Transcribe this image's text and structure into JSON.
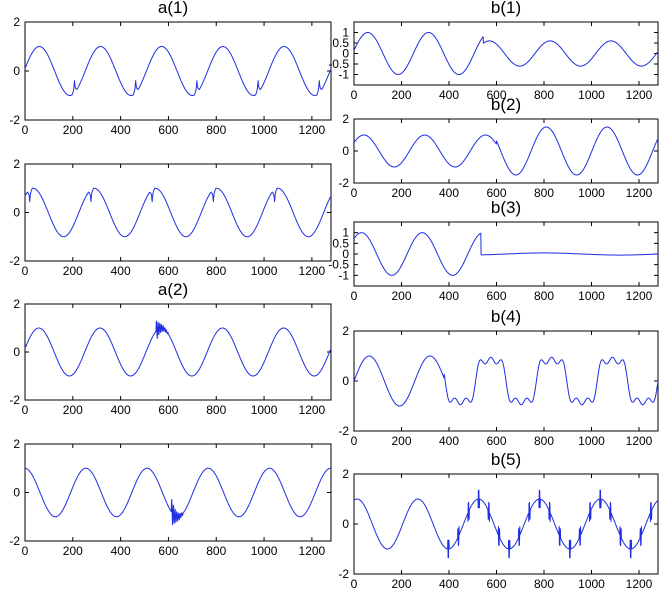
{
  "figure": {
    "colors": {
      "line": "#1f2ee0",
      "axes": "#000000",
      "background": "#ffffff"
    }
  },
  "chart_data": [
    {
      "id": "a1-top",
      "title": "a(1)",
      "type": "line",
      "xlim": [
        0,
        1280
      ],
      "ylim": [
        -2,
        2
      ],
      "xticks": [
        "0",
        "200",
        "400",
        "600",
        "800",
        "1000",
        "1200"
      ],
      "yticks": [
        "2",
        "0",
        "-2"
      ],
      "series": [
        {
          "kind": "sine",
          "amplitude": 1,
          "period": 256,
          "phase": 0.1,
          "disturbance": "spikes",
          "spike_sign": 1,
          "spike_height": 0.5,
          "spike_x": [
            207,
            463,
            719,
            975,
            1231
          ]
        }
      ]
    },
    {
      "id": "a1-bottom",
      "title": "",
      "type": "line",
      "xlim": [
        0,
        1280
      ],
      "ylim": [
        -2,
        2
      ],
      "xticks": [
        "0",
        "200",
        "400",
        "600",
        "800",
        "1000",
        "1200"
      ],
      "yticks": [
        "2",
        "0",
        "-2"
      ],
      "series": [
        {
          "kind": "sine",
          "amplitude": 1,
          "period": 256,
          "phase": 0.75,
          "disturbance": "spikes",
          "spike_sign": -1,
          "spike_height": 0.5,
          "spike_x": [
            20,
            276,
            532,
            788,
            1044
          ]
        }
      ]
    },
    {
      "id": "a2-top",
      "title": "a(2)",
      "type": "line",
      "xlim": [
        0,
        1280
      ],
      "ylim": [
        -2,
        2
      ],
      "xticks": [
        "0",
        "200",
        "400",
        "600",
        "800",
        "1000",
        "1200"
      ],
      "yticks": [
        "2",
        "0",
        "-2"
      ],
      "series": [
        {
          "kind": "sine",
          "amplitude": 1,
          "period": 256,
          "phase": 0.15,
          "disturbance": "oscillatory-transient",
          "transient_start": 548,
          "transient_end": 600,
          "transient_amplitude": 0.45
        }
      ]
    },
    {
      "id": "a2-bottom",
      "title": "",
      "type": "line",
      "xlim": [
        0,
        1280
      ],
      "ylim": [
        -2,
        2
      ],
      "xticks": [
        "0",
        "200",
        "400",
        "600",
        "800",
        "1000",
        "1200"
      ],
      "yticks": [
        "2",
        "0",
        "-2"
      ],
      "series": [
        {
          "kind": "sine",
          "amplitude": 1,
          "period": 256,
          "phase": 1.6,
          "disturbance": "oscillatory-transient",
          "transient_start": 612,
          "transient_end": 660,
          "transient_amplitude": 0.6
        }
      ]
    },
    {
      "id": "b1",
      "title": "b(1)",
      "type": "line",
      "xlim": [
        0,
        1280
      ],
      "ylim": [
        -1.5,
        1.5
      ],
      "xticks": [
        "0",
        "200",
        "400",
        "600",
        "800",
        "1000",
        "1200"
      ],
      "yticks": [
        "1",
        "0.5",
        "0",
        "-0.5",
        "-1"
      ],
      "series": [
        {
          "kind": "sine",
          "amplitude": 1,
          "period": 256,
          "phase": 0.15,
          "disturbance": "sag",
          "change_x": 545,
          "amplitude_after": 0.6
        }
      ]
    },
    {
      "id": "b2",
      "title": "b(2)",
      "type": "line",
      "xlim": [
        0,
        1280
      ],
      "ylim": [
        -2,
        2
      ],
      "xticks": [
        "0",
        "200",
        "400",
        "600",
        "800",
        "1000",
        "1200"
      ],
      "yticks": [
        "2",
        "0",
        "-2"
      ],
      "series": [
        {
          "kind": "sine",
          "amplitude": 1,
          "period": 256,
          "phase": 0.55,
          "disturbance": "swell",
          "change_x": 600,
          "amplitude_after": 1.5
        }
      ]
    },
    {
      "id": "b3",
      "title": "b(3)",
      "type": "line",
      "xlim": [
        0,
        1280
      ],
      "ylim": [
        -1.5,
        1.5
      ],
      "xticks": [
        "0",
        "200",
        "400",
        "600",
        "800",
        "1000",
        "1200"
      ],
      "yticks": [
        "1",
        "0.5",
        "0",
        "-0.5",
        "-1"
      ],
      "series": [
        {
          "kind": "sine",
          "amplitude": 1,
          "period": 256,
          "phase": 0.8,
          "disturbance": "interruption",
          "change_x": 535,
          "amplitude_after": 0.05
        }
      ]
    },
    {
      "id": "b4",
      "title": "b(4)",
      "type": "line",
      "xlim": [
        0,
        1280
      ],
      "ylim": [
        -2,
        2
      ],
      "xticks": [
        "0",
        "200",
        "400",
        "600",
        "800",
        "1000",
        "1200"
      ],
      "yticks": [
        "2",
        "0",
        "-2"
      ],
      "series": [
        {
          "kind": "sine",
          "amplitude": 1,
          "period": 256,
          "phase": 0.0,
          "disturbance": "harmonics",
          "change_x": 380,
          "harmonics": [
            {
              "order": 3,
              "amplitude": 0.25
            },
            {
              "order": 5,
              "amplitude": 0.2
            }
          ]
        }
      ]
    },
    {
      "id": "b5",
      "title": "b(5)",
      "type": "line",
      "xlim": [
        0,
        1280
      ],
      "ylim": [
        -2,
        2
      ],
      "xticks": [
        "0",
        "200",
        "400",
        "600",
        "800",
        "1000",
        "1200"
      ],
      "yticks": [
        "2",
        "0",
        "-2"
      ],
      "series": [
        {
          "kind": "sine",
          "amplitude": 1,
          "period": 256,
          "phase": 1.25,
          "disturbance": "notching",
          "change_x": 380,
          "notch_height": 0.35,
          "notches_per_cycle": 6
        }
      ]
    }
  ]
}
